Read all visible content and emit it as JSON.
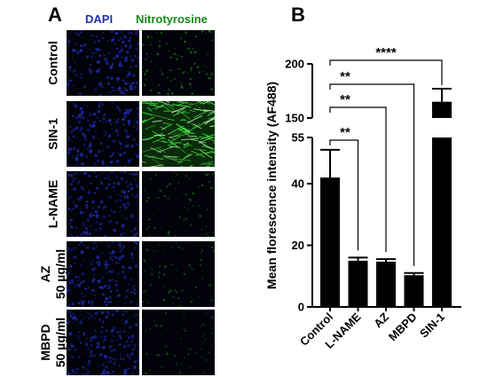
{
  "figure": {
    "panel_a_letter": "A",
    "panel_b_letter": "B",
    "channels": [
      "DAPI",
      "Nitrotyrosine"
    ],
    "channel_colors": {
      "DAPI": "#1f2fb4",
      "Nitrotyrosine": "#148a14"
    },
    "rows": [
      {
        "label": [
          "Control"
        ],
        "green_intensity": 0.35,
        "fibers": false
      },
      {
        "label": [
          "SIN-1"
        ],
        "green_intensity": 1.0,
        "fibers": true
      },
      {
        "label": [
          "L-NAME"
        ],
        "green_intensity": 0.18,
        "fibers": false
      },
      {
        "label": [
          "AZ",
          "50 µg/ml"
        ],
        "green_intensity": 0.15,
        "fibers": false
      },
      {
        "label": [
          "MBPD",
          "50 µg/ml"
        ],
        "green_intensity": 0.1,
        "fibers": false
      }
    ]
  },
  "chart_data": {
    "type": "bar",
    "categories": [
      "Control",
      "L-NAME",
      "AZ",
      "MBPD",
      "SIN-1"
    ],
    "values": [
      42,
      15,
      14.7,
      10.3,
      165
    ],
    "errors": [
      9,
      1,
      0.8,
      0.7,
      12
    ],
    "ylabel": "Mean florescence intensity (AF488)",
    "y_axis_break": true,
    "ylim_lower": [
      0,
      55
    ],
    "ylim_upper": [
      150,
      200
    ],
    "lower_ticks": [
      0,
      20,
      40,
      55
    ],
    "upper_ticks": [
      150,
      200
    ],
    "bar_color": "#000000",
    "significance": [
      {
        "from": "Control",
        "to": "L-NAME",
        "label": "**"
      },
      {
        "from": "Control",
        "to": "AZ",
        "label": "**"
      },
      {
        "from": "Control",
        "to": "MBPD",
        "label": "**"
      },
      {
        "from": "Control",
        "to": "SIN-1",
        "label": "****"
      }
    ]
  }
}
